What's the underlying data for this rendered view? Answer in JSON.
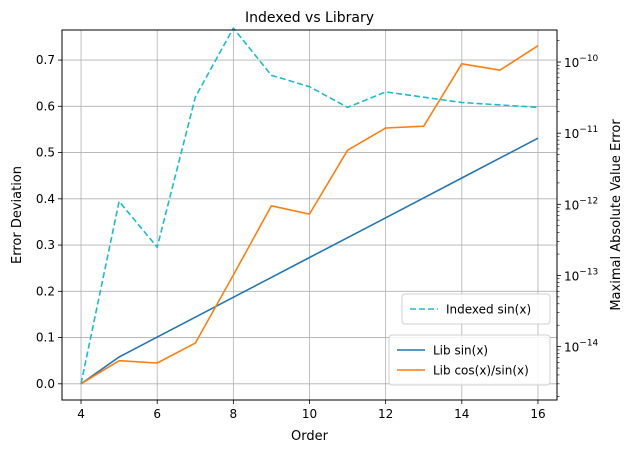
{
  "chart_data": {
    "type": "line",
    "title": "Indexed vs Library",
    "xlabel": "Order",
    "ylabel_left": "Error Deviation",
    "ylabel_right": "Maximal Absolute Value Error",
    "xlim": [
      3.5,
      16.5
    ],
    "ylim_left": [
      -0.035,
      0.765
    ],
    "ylim_right_log10": [
      -14.75,
      -9.55
    ],
    "x_ticks": [
      4,
      6,
      8,
      10,
      12,
      14,
      16
    ],
    "x_tick_labels": [
      "4",
      "6",
      "8",
      "10",
      "12",
      "14",
      "16"
    ],
    "y_left_ticks": [
      0.0,
      0.1,
      0.2,
      0.3,
      0.4,
      0.5,
      0.6,
      0.7
    ],
    "y_left_tick_labels": [
      "0.0",
      "0.1",
      "0.2",
      "0.3",
      "0.4",
      "0.5",
      "0.6",
      "0.7"
    ],
    "y_right_ticks_exp": [
      -14,
      -13,
      -12,
      -11,
      -10
    ],
    "y_right_tick_labels": [
      "10",
      "10",
      "10",
      "10",
      "10"
    ],
    "y_right_tick_sup": [
      "−14",
      "−13",
      "−12",
      "−11",
      "−10"
    ],
    "grid": true,
    "series": [
      {
        "name": "Indexed sin(x)",
        "axis": "right",
        "style": "dashed",
        "color": "#17becf",
        "x": [
          4,
          5,
          6,
          7,
          8,
          9,
          10,
          11,
          12,
          13,
          14,
          15,
          16
        ],
        "values": [
          3e-15,
          1.1e-12,
          2.5e-13,
          3.2e-11,
          3e-10,
          6.5e-11,
          4.5e-11,
          2.3e-11,
          3.8e-11,
          3.2e-11,
          2.7e-11,
          2.5e-11,
          2.3e-11
        ]
      },
      {
        "name": "Lib sin(x)",
        "axis": "left",
        "style": "solid",
        "color": "#1f77b4",
        "x": [
          4,
          5,
          6,
          7,
          8,
          9,
          10,
          11,
          12,
          13,
          14,
          15,
          16
        ],
        "values": [
          0.0,
          0.058,
          0.101,
          0.144,
          0.187,
          0.23,
          0.273,
          0.316,
          0.359,
          0.402,
          0.445,
          0.488,
          0.531
        ]
      },
      {
        "name": "Lib cos(x)/sin(x)",
        "axis": "left",
        "style": "solid",
        "color": "#ff7f0e",
        "x": [
          4,
          5,
          6,
          7,
          8,
          9,
          10,
          11,
          12,
          13,
          14,
          15,
          16
        ],
        "values": [
          0.0,
          0.05,
          0.045,
          0.088,
          0.235,
          0.385,
          0.367,
          0.505,
          0.553,
          0.557,
          0.692,
          0.678,
          0.731
        ]
      }
    ],
    "legends": [
      {
        "placement": "center-right",
        "entries": [
          "Indexed sin(x)"
        ]
      },
      {
        "placement": "lower-right",
        "entries": [
          "Lib sin(x)",
          "Lib cos(x)/sin(x)"
        ]
      }
    ]
  }
}
